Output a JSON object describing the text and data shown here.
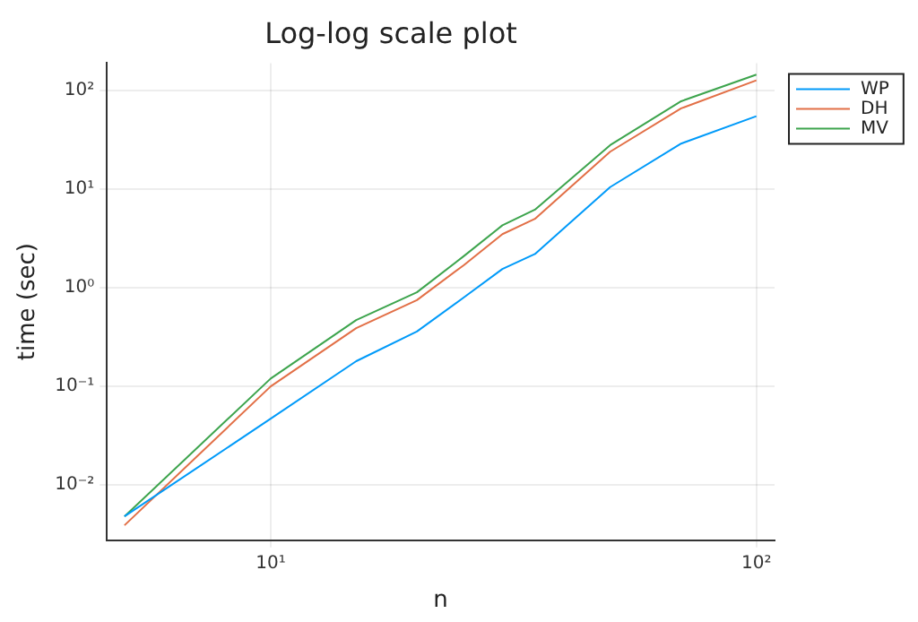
{
  "chart_data": {
    "type": "line",
    "title": "Log-log scale plot",
    "xlabel": "n",
    "ylabel": "time (sec)",
    "log": "xy",
    "grid": true,
    "legend": "right",
    "marker": "none",
    "line_style": "solid",
    "x": [
      5,
      10,
      15,
      20,
      25,
      30,
      35,
      50,
      70,
      100
    ],
    "xlim": [
      4.6,
      109
    ],
    "xticks": [
      {
        "value": 10,
        "label": "10¹"
      },
      {
        "value": 100,
        "label": "10²"
      }
    ],
    "ylim": [
      0.00275,
      190
    ],
    "yticks": [
      {
        "value": 0.01,
        "label": "10⁻²"
      },
      {
        "value": 0.1,
        "label": "10⁻¹"
      },
      {
        "value": 1,
        "label": "10⁰"
      },
      {
        "value": 10,
        "label": "10¹"
      },
      {
        "value": 100,
        "label": "10²"
      }
    ],
    "series": [
      {
        "name": "WP",
        "color": "#009af9",
        "values": [
          0.0048,
          0.047,
          0.18,
          0.36,
          0.8,
          1.55,
          2.2,
          10.5,
          29,
          55
        ]
      },
      {
        "name": "DH",
        "color": "#e26f46",
        "values": [
          0.0039,
          0.1,
          0.39,
          0.75,
          1.7,
          3.5,
          5.0,
          24,
          66,
          127
        ]
      },
      {
        "name": "MV",
        "color": "#3da44d",
        "values": [
          0.0048,
          0.12,
          0.47,
          0.9,
          2.1,
          4.3,
          6.2,
          28,
          78,
          145
        ]
      }
    ]
  }
}
